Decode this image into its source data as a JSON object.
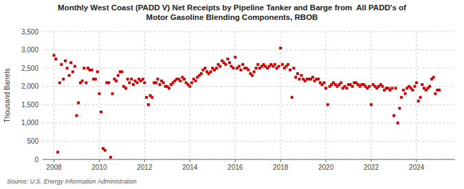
{
  "chart_data": {
    "type": "scatter",
    "title": "Monthly West Coast (PADD V) Net Receipts by Pipeline Tanker and Barge from  All PADD's of\nMotor Gasoline Blending Components, RBOB",
    "y_label": "Thousand Barrels",
    "annotation": "Source: U.S. Energy Information Administration",
    "color": "#cc0000",
    "marker": "square",
    "grid": true,
    "xlim": [
      2007.5,
      2025.7
    ],
    "xticks": [
      2008,
      2010,
      2012,
      2014,
      2016,
      2018,
      2020,
      2022,
      2024
    ],
    "ylim": [
      0,
      3500
    ],
    "yticks": [
      0,
      500,
      {
        "value": 1000,
        "label": "1,000"
      },
      {
        "value": 1500,
        "label": "1,500"
      },
      {
        "value": 2000,
        "label": "2,000"
      },
      {
        "value": 2500,
        "label": "2,500"
      },
      {
        "value": 3000,
        "label": "3,000"
      },
      {
        "value": 3500,
        "label": "3,500"
      }
    ],
    "x": [
      2008.0,
      2008.08,
      2008.17,
      2008.25,
      2008.33,
      2008.42,
      2008.5,
      2008.58,
      2008.67,
      2008.75,
      2008.83,
      2008.92,
      2009.0,
      2009.08,
      2009.17,
      2009.25,
      2009.33,
      2009.42,
      2009.5,
      2009.58,
      2009.67,
      2009.75,
      2009.83,
      2009.92,
      2010.0,
      2010.08,
      2010.17,
      2010.25,
      2010.33,
      2010.42,
      2010.5,
      2010.58,
      2010.67,
      2010.75,
      2010.83,
      2010.92,
      2011.0,
      2011.08,
      2011.17,
      2011.25,
      2011.33,
      2011.42,
      2011.5,
      2011.58,
      2011.67,
      2011.75,
      2011.83,
      2011.92,
      2012.0,
      2012.08,
      2012.17,
      2012.25,
      2012.33,
      2012.42,
      2012.5,
      2012.58,
      2012.67,
      2012.75,
      2012.83,
      2012.92,
      2013.0,
      2013.08,
      2013.17,
      2013.25,
      2013.33,
      2013.42,
      2013.5,
      2013.58,
      2013.67,
      2013.75,
      2013.83,
      2013.92,
      2014.0,
      2014.08,
      2014.17,
      2014.25,
      2014.33,
      2014.42,
      2014.5,
      2014.58,
      2014.67,
      2014.75,
      2014.83,
      2014.92,
      2015.0,
      2015.08,
      2015.17,
      2015.25,
      2015.33,
      2015.42,
      2015.5,
      2015.58,
      2015.67,
      2015.75,
      2015.83,
      2015.92,
      2016.0,
      2016.08,
      2016.17,
      2016.25,
      2016.33,
      2016.42,
      2016.5,
      2016.58,
      2016.67,
      2016.75,
      2016.83,
      2016.92,
      2017.0,
      2017.08,
      2017.17,
      2017.25,
      2017.33,
      2017.42,
      2017.5,
      2017.58,
      2017.67,
      2017.75,
      2017.83,
      2017.92,
      2018.0,
      2018.08,
      2018.17,
      2018.25,
      2018.33,
      2018.42,
      2018.5,
      2018.58,
      2018.67,
      2018.75,
      2018.83,
      2018.92,
      2019.0,
      2019.08,
      2019.17,
      2019.25,
      2019.33,
      2019.42,
      2019.5,
      2019.58,
      2019.67,
      2019.75,
      2019.83,
      2019.92,
      2020.0,
      2020.08,
      2020.17,
      2020.25,
      2020.33,
      2020.42,
      2020.5,
      2020.58,
      2020.67,
      2020.75,
      2020.83,
      2020.92,
      2021.0,
      2021.08,
      2021.17,
      2021.25,
      2021.33,
      2021.42,
      2021.5,
      2021.58,
      2021.67,
      2021.75,
      2021.83,
      2021.92,
      2022.0,
      2022.08,
      2022.17,
      2022.25,
      2022.33,
      2022.42,
      2022.5,
      2022.58,
      2022.67,
      2022.75,
      2022.83,
      2022.92,
      2023.0,
      2023.08,
      2023.17,
      2023.25,
      2023.33,
      2023.42,
      2023.5,
      2023.58,
      2023.67,
      2023.75,
      2023.83,
      2023.92,
      2024.0,
      2024.08,
      2024.17,
      2024.25,
      2024.33,
      2024.42,
      2024.5,
      2024.58,
      2024.67,
      2024.75,
      2024.83,
      2024.92,
      2025.0
    ],
    "values": [
      2850,
      2750,
      200,
      2100,
      2600,
      2200,
      2700,
      2500,
      2300,
      2650,
      2400,
      2550,
      1200,
      1550,
      2100,
      2150,
      2500,
      2100,
      2500,
      2450,
      2450,
      2200,
      2200,
      2400,
      1800,
      1300,
      300,
      250,
      2100,
      2100,
      60,
      1800,
      2200,
      2150,
      2300,
      2400,
      2400,
      2000,
      1950,
      2200,
      2100,
      2200,
      2050,
      2150,
      2100,
      2200,
      2150,
      2200,
      2100,
      1700,
      1500,
      1750,
      1700,
      2100,
      2100,
      2200,
      2050,
      2150,
      2100,
      2000,
      2000,
      1950,
      2050,
      2100,
      2150,
      2200,
      2200,
      2150,
      2250,
      2200,
      2100,
      2050,
      2000,
      2100,
      2200,
      2150,
      2250,
      2300,
      2350,
      2450,
      2500,
      2400,
      2350,
      2400,
      2500,
      2450,
      2500,
      2600,
      2550,
      2700,
      2650,
      2600,
      2750,
      2650,
      2550,
      2500,
      2800,
      2500,
      2550,
      2450,
      2600,
      2500,
      2500,
      2450,
      2350,
      2300,
      2400,
      2500,
      2600,
      2500,
      2550,
      2600,
      2550,
      2500,
      2550,
      2600,
      2550,
      2600,
      2500,
      2550,
      3050,
      2600,
      2500,
      2550,
      2600,
      2450,
      1700,
      2500,
      2250,
      2350,
      2200,
      2300,
      2200,
      2150,
      2200,
      2200,
      2200,
      2250,
      2150,
      2200,
      2200,
      2100,
      2050,
      2100,
      1950,
      1500,
      2000,
      2050,
      2100,
      2050,
      2000,
      2050,
      2100,
      1950,
      2000,
      1950,
      2050,
      2050,
      2000,
      2100,
      2100,
      2050,
      2000,
      2050,
      2050,
      2000,
      1950,
      2000,
      1500,
      2050,
      2000,
      1950,
      2000,
      2050,
      2000,
      1900,
      1950,
      1950,
      1900,
      1950,
      1200,
      1950,
      1000,
      1400,
      1700,
      1900,
      1800,
      1950,
      2000,
      1950,
      1900,
      2000,
      2100,
      1600,
      1700,
      2050,
      1950,
      1900,
      1950,
      2000,
      2200,
      2250,
      1800,
      1900,
      1900
    ]
  }
}
